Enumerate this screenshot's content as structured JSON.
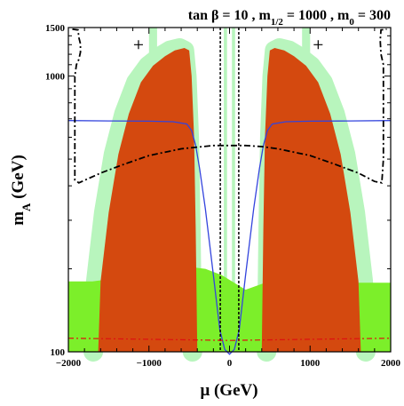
{
  "chart_data": {
    "type": "area",
    "title": "tan β = 10 ,  m1/2 = 1000 ,  m0 = 300",
    "title_parts": {
      "p1": "tan β = 10 ,  m",
      "s1": "1/2",
      "p2": " = 1000 ,  m",
      "s2": "0",
      "p3": " = 300"
    },
    "xlabel": "μ (GeV)",
    "ylabel_main": "m",
    "ylabel_sub": "A",
    "ylabel_rest": " (GeV)",
    "xlim": [
      -2000,
      2000
    ],
    "ylim": [
      100,
      1500
    ],
    "y_scale": "log",
    "grid": false,
    "x_ticks": [
      {
        "value": -2000,
        "label": "−2000"
      },
      {
        "value": -1000,
        "label": "−1000"
      },
      {
        "value": 0,
        "label": "0"
      },
      {
        "value": 1000,
        "label": "1000"
      },
      {
        "value": 2000,
        "label": "2000"
      }
    ],
    "y_ticks": [
      {
        "value": 100,
        "label": "100"
      },
      {
        "value": 1000,
        "label": "1000"
      },
      {
        "value": 1500,
        "label": "1500"
      }
    ],
    "colors": {
      "excluded_orange": "#d4490f",
      "light_green": "#b8f5bd",
      "bright_green": "#7cef2a",
      "blue_curve": "#3344dd",
      "red_curve": "#dd1111",
      "black_curve": "#000000"
    },
    "regions": [
      {
        "kind": "orange-left",
        "points": [
          [
            -1630,
            100
          ],
          [
            -1600,
            180
          ],
          [
            -1500,
            320
          ],
          [
            -1380,
            520
          ],
          [
            -1250,
            730
          ],
          [
            -1100,
            950
          ],
          [
            -950,
            1090
          ],
          [
            -800,
            1180
          ],
          [
            -680,
            1240
          ],
          [
            -560,
            1265
          ],
          [
            -500,
            1240
          ],
          [
            -470,
            1000
          ],
          [
            -440,
            600
          ],
          [
            -420,
            280
          ],
          [
            -400,
            100
          ]
        ]
      },
      {
        "kind": "orange-right",
        "points": [
          [
            400,
            100
          ],
          [
            420,
            280
          ],
          [
            440,
            600
          ],
          [
            470,
            1000
          ],
          [
            500,
            1240
          ],
          [
            560,
            1265
          ],
          [
            680,
            1240
          ],
          [
            800,
            1180
          ],
          [
            950,
            1090
          ],
          [
            1100,
            950
          ],
          [
            1250,
            730
          ],
          [
            1380,
            520
          ],
          [
            1500,
            320
          ],
          [
            1600,
            180
          ],
          [
            1630,
            100
          ]
        ]
      },
      {
        "kind": "green-bottom",
        "points": [
          [
            -2000,
            100
          ],
          [
            -2000,
            180
          ],
          [
            -1700,
            180
          ],
          [
            -1400,
            185
          ],
          [
            -1000,
            190
          ],
          [
            -600,
            205
          ],
          [
            -300,
            200
          ],
          [
            -100,
            190
          ],
          [
            100,
            175
          ],
          [
            200,
            168
          ],
          [
            300,
            172
          ],
          [
            600,
            185
          ],
          [
            1000,
            183
          ],
          [
            1400,
            178
          ],
          [
            2000,
            178
          ],
          [
            2000,
            100
          ]
        ]
      }
    ],
    "series": [
      {
        "style": "blue-solid",
        "points": [
          [
            -2000,
            690
          ],
          [
            -1500,
            688
          ],
          [
            -1000,
            686
          ],
          [
            -700,
            683
          ],
          [
            -530,
            670
          ],
          [
            -470,
            635
          ],
          [
            -420,
            560
          ],
          [
            -370,
            460
          ],
          [
            -300,
            330
          ],
          [
            -200,
            190
          ],
          [
            -120,
            120
          ],
          [
            -60,
            102
          ],
          [
            0,
            98
          ],
          [
            60,
            102
          ],
          [
            120,
            120
          ],
          [
            200,
            190
          ],
          [
            300,
            330
          ],
          [
            370,
            460
          ],
          [
            420,
            560
          ],
          [
            470,
            635
          ],
          [
            530,
            670
          ],
          [
            700,
            683
          ],
          [
            1000,
            686
          ],
          [
            1500,
            688
          ],
          [
            2000,
            690
          ]
        ]
      },
      {
        "style": "black-dashdot",
        "points": [
          [
            -1950,
            1480
          ],
          [
            -1880,
            1470
          ],
          [
            -1870,
            1380
          ],
          [
            -1850,
            1310
          ],
          [
            -1850,
            1220
          ],
          [
            -1870,
            1150
          ],
          [
            -1900,
            1100
          ],
          [
            -1920,
            1000
          ],
          [
            -1920,
            900
          ],
          [
            -1920,
            800
          ],
          [
            -1920,
            700
          ],
          [
            -1920,
            600
          ],
          [
            -1920,
            500
          ],
          [
            -1920,
            420
          ],
          [
            -1870,
            410
          ],
          [
            -1600,
            445
          ],
          [
            -1300,
            480
          ],
          [
            -1000,
            515
          ],
          [
            -600,
            545
          ],
          [
            -200,
            560
          ],
          [
            0,
            560
          ],
          [
            200,
            560
          ],
          [
            400,
            555
          ],
          [
            600,
            545
          ],
          [
            1000,
            515
          ],
          [
            1300,
            480
          ],
          [
            1600,
            445
          ],
          [
            1800,
            415
          ],
          [
            1890,
            410
          ],
          [
            1910,
            500
          ],
          [
            1910,
            700
          ],
          [
            1910,
            900
          ],
          [
            1910,
            1100
          ],
          [
            1880,
            1200
          ],
          [
            1870,
            1350
          ],
          [
            1880,
            1470
          ],
          [
            1950,
            1480
          ]
        ]
      },
      {
        "style": "black-dashed-vert",
        "points": [
          [
            -115,
            1500
          ],
          [
            -115,
            100
          ]
        ]
      },
      {
        "style": "black-dashed-vert",
        "points": [
          [
            115,
            1500
          ],
          [
            115,
            100
          ]
        ]
      },
      {
        "style": "red-dashdot",
        "points": [
          [
            -2000,
            112
          ],
          [
            -1000,
            111
          ],
          [
            0,
            110
          ],
          [
            1000,
            111
          ],
          [
            2000,
            112
          ]
        ]
      }
    ],
    "markers": [
      {
        "x": -1130,
        "y": 1300
      },
      {
        "x": 1100,
        "y": 1300
      }
    ]
  }
}
